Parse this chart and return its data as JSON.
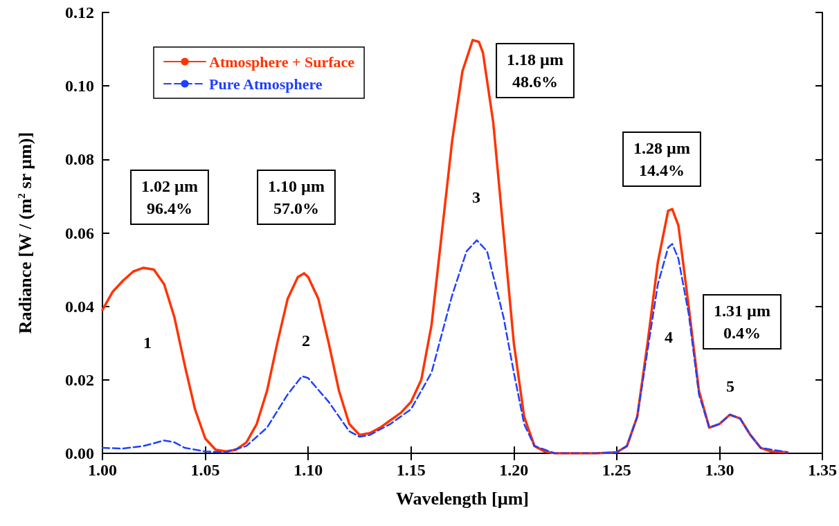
{
  "chart_data": {
    "type": "line",
    "xlabel": "Wavelength [µm]",
    "ylabel": "Radiance [W / (m$^{2}$ sr µm)]",
    "xlim": [
      1.0,
      1.35
    ],
    "xticks": [
      {
        "value": 1.0,
        "label": "1.00"
      },
      1.05,
      {
        "value": 1.1,
        "label": "1.10"
      },
      1.15,
      {
        "value": 1.2,
        "label": "1.20"
      },
      1.25,
      {
        "value": 1.3,
        "label": "1.30"
      },
      1.35
    ],
    "ylim": [
      0,
      0.12
    ],
    "yticks": [
      {
        "value": 0,
        "label": "0.00"
      },
      0.02,
      0.04,
      0.06,
      0.08,
      {
        "value": 0.1,
        "label": "0.10"
      },
      0.12
    ],
    "grid": false,
    "legend": "top left",
    "marker": "none",
    "series": [
      {
        "name": "Atmosphere + Surface",
        "color": "#ff3300",
        "line_style": "solid",
        "x": [
          1.0,
          1.005,
          1.01,
          1.015,
          1.02,
          1.025,
          1.03,
          1.035,
          1.04,
          1.045,
          1.05,
          1.055,
          1.06,
          1.065,
          1.07,
          1.075,
          1.08,
          1.085,
          1.09,
          1.095,
          1.098,
          1.1,
          1.105,
          1.11,
          1.115,
          1.12,
          1.125,
          1.13,
          1.135,
          1.14,
          1.145,
          1.15,
          1.155,
          1.16,
          1.165,
          1.17,
          1.175,
          1.18,
          1.183,
          1.185,
          1.19,
          1.195,
          1.2,
          1.205,
          1.21,
          1.215,
          1.22,
          1.24,
          1.25,
          1.255,
          1.26,
          1.265,
          1.27,
          1.275,
          1.277,
          1.28,
          1.285,
          1.29,
          1.295,
          1.3,
          1.305,
          1.31,
          1.315,
          1.32,
          1.325,
          1.333
        ],
        "values": [
          0.039,
          0.044,
          0.047,
          0.0495,
          0.0505,
          0.05,
          0.046,
          0.037,
          0.024,
          0.012,
          0.004,
          0.001,
          0.0005,
          0.001,
          0.003,
          0.008,
          0.017,
          0.03,
          0.042,
          0.048,
          0.049,
          0.048,
          0.042,
          0.03,
          0.017,
          0.008,
          0.005,
          0.0055,
          0.007,
          0.009,
          0.011,
          0.014,
          0.02,
          0.035,
          0.06,
          0.085,
          0.104,
          0.1125,
          0.112,
          0.109,
          0.09,
          0.06,
          0.03,
          0.01,
          0.002,
          0.0005,
          0,
          0,
          0.0003,
          0.002,
          0.01,
          0.03,
          0.052,
          0.066,
          0.0665,
          0.062,
          0.04,
          0.017,
          0.007,
          0.008,
          0.0105,
          0.0095,
          0.005,
          0.0015,
          0.0005,
          0.0003
        ]
      },
      {
        "name": "Pure Atmosphere",
        "color": "#2040ff",
        "line_style": "dashed",
        "x": [
          1.0,
          1.01,
          1.02,
          1.03,
          1.035,
          1.04,
          1.05,
          1.06,
          1.07,
          1.08,
          1.09,
          1.097,
          1.1,
          1.11,
          1.12,
          1.125,
          1.13,
          1.14,
          1.15,
          1.16,
          1.17,
          1.177,
          1.182,
          1.187,
          1.195,
          1.2,
          1.205,
          1.21,
          1.22,
          1.24,
          1.25,
          1.255,
          1.26,
          1.265,
          1.27,
          1.275,
          1.277,
          1.28,
          1.285,
          1.29,
          1.295,
          1.3,
          1.305,
          1.31,
          1.315,
          1.32,
          1.333
        ],
        "values": [
          0.0015,
          0.0013,
          0.002,
          0.0035,
          0.003,
          0.0015,
          0.0005,
          0.0003,
          0.002,
          0.007,
          0.016,
          0.021,
          0.0205,
          0.014,
          0.006,
          0.0045,
          0.005,
          0.008,
          0.012,
          0.022,
          0.043,
          0.055,
          0.058,
          0.055,
          0.037,
          0.022,
          0.008,
          0.002,
          0,
          0,
          0.0003,
          0.002,
          0.01,
          0.028,
          0.046,
          0.056,
          0.057,
          0.053,
          0.038,
          0.016,
          0.007,
          0.008,
          0.0105,
          0.0095,
          0.005,
          0.0015,
          0.0003
        ]
      }
    ],
    "annotations": [
      "1.02 µm\n96.4%",
      "1.10 µm\n57.0%",
      "1.18 µm\n48.6%",
      "1.28 µm\n14.4%",
      "1.31 µm\n0.4%",
      "1",
      "2",
      "3",
      "4",
      "5"
    ]
  }
}
